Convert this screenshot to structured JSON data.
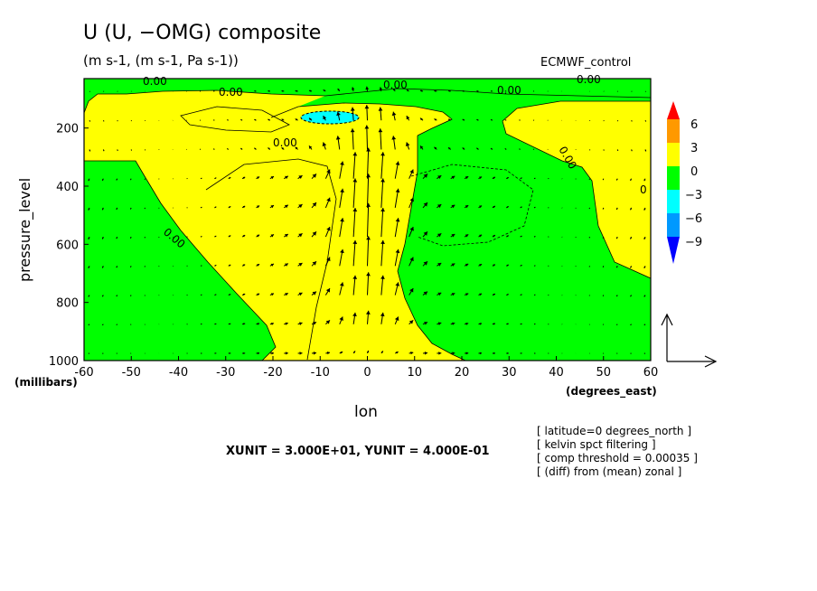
{
  "chart_data": {
    "type": "contour",
    "title": "U (U, −OMG) composite",
    "subtitle": "(m s-1, (m s-1, Pa s-1))",
    "model": "ECMWF_control",
    "xlabel": "lon",
    "x_units": "(degrees_east)",
    "ylabel": "pressure_level",
    "y_units": "(millibars)",
    "xlim": [
      -60,
      60
    ],
    "ylim": [
      1000,
      30
    ],
    "x_ticks": [
      -60,
      -50,
      -40,
      -30,
      -20,
      -10,
      0,
      10,
      20,
      30,
      40,
      50,
      60
    ],
    "y_ticks": [
      200,
      400,
      600,
      800,
      1000
    ],
    "colorbar": {
      "levels": [
        "6",
        "3",
        "0",
        "−3",
        "−6",
        "−9"
      ],
      "colors": [
        "#ff0000",
        "#ff9900",
        "#ffff00",
        "#00ff00",
        "#00ffff",
        "#0099ff",
        "#0000ff"
      ]
    },
    "contour_labels": [
      "0.00",
      "0.00",
      "0.00",
      "0.00",
      "0.00",
      "0.00",
      "0.00",
      "0.00",
      "0"
    ],
    "vector_scale": "XUNIT = 3.000E+01, YUNIT = 4.000E-01",
    "annotations": [
      "[ latitude=0 degrees_north ]",
      "[ kelvin spct filtering ]",
      "[ comp threshold = 0.00035 ]",
      "[ (diff) from (mean) zonal ]"
    ]
  }
}
